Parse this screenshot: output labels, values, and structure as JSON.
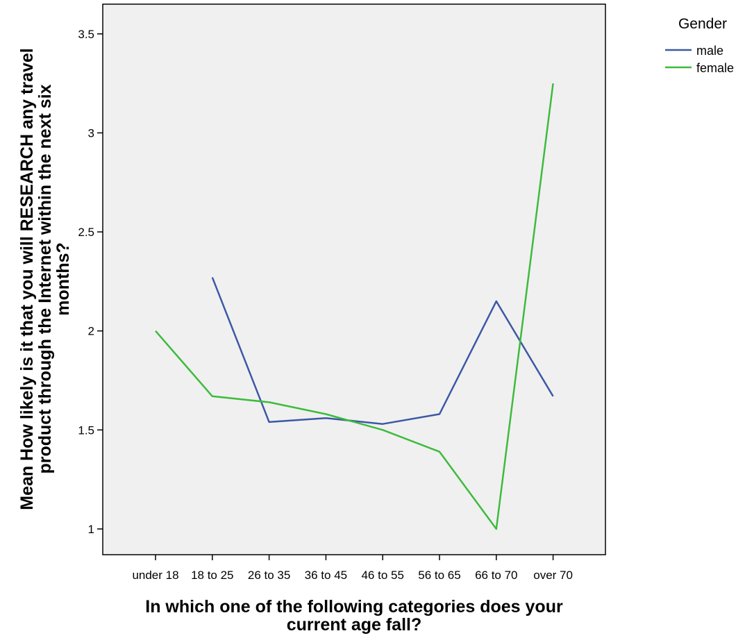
{
  "chart_data": {
    "type": "line",
    "categories": [
      "under 18",
      "18 to 25",
      "26 to 35",
      "36 to 45",
      "46 to 55",
      "56 to 65",
      "66 to 70",
      "over 70"
    ],
    "series": [
      {
        "name": "male",
        "color": "#3c58a5",
        "values": [
          null,
          2.27,
          1.54,
          1.56,
          1.53,
          1.58,
          2.15,
          1.67
        ]
      },
      {
        "name": "female",
        "color": "#3dbb3d",
        "values": [
          2.0,
          1.67,
          1.64,
          1.58,
          1.5,
          1.39,
          1.0,
          3.25
        ]
      }
    ],
    "xlabel": [
      "In which one of the following categories does your",
      "current age fall?"
    ],
    "ylabel": [
      "Mean How likely is it that you will RESEARCH any travel",
      "product through the Internet within the next six",
      "months?"
    ],
    "yticks": [
      "1",
      "1.5",
      "2",
      "2.5",
      "3",
      "3.5"
    ],
    "ylim": [
      0.87,
      3.65
    ],
    "legend": {
      "title": "Gender",
      "placement": "top-right"
    },
    "plot_background": "#f0f0f0",
    "grid": false
  }
}
